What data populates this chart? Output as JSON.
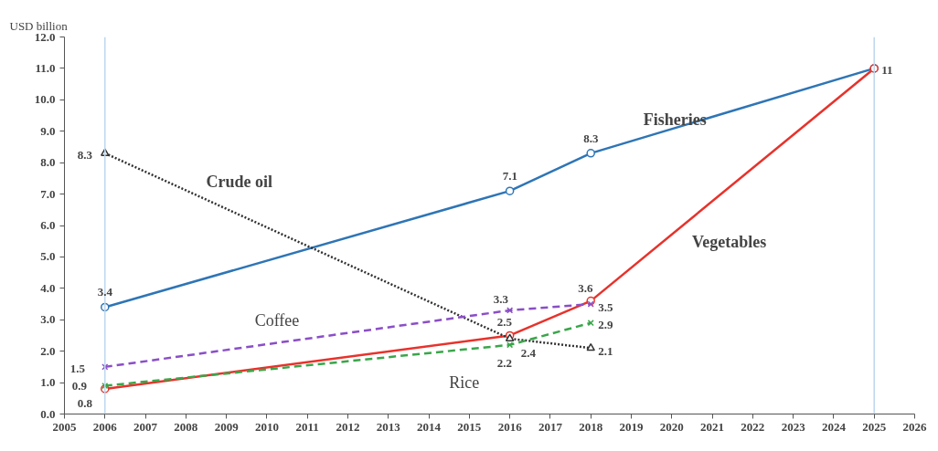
{
  "chart_data": {
    "type": "line",
    "ylabel": "USD billion",
    "xlim": [
      2005,
      2026
    ],
    "xticks": [
      2005,
      2006,
      2007,
      2008,
      2009,
      2010,
      2011,
      2012,
      2013,
      2014,
      2015,
      2016,
      2017,
      2018,
      2019,
      2020,
      2021,
      2022,
      2023,
      2024,
      2025,
      2026
    ],
    "ylim": [
      0,
      12
    ],
    "yticks": [
      {
        "value": 0,
        "label": "0.0"
      },
      {
        "value": 1,
        "label": "1.0"
      },
      {
        "value": 2,
        "label": "2.0"
      },
      {
        "value": 3,
        "label": "3.0"
      },
      {
        "value": 4,
        "label": "4.0"
      },
      {
        "value": 5,
        "label": "5.0"
      },
      {
        "value": 6,
        "label": "6.0"
      },
      {
        "value": 7,
        "label": "7.0"
      },
      {
        "value": 8,
        "label": "8.0"
      },
      {
        "value": 9,
        "label": "9.0"
      },
      {
        "value": 10,
        "label": "10.0"
      },
      {
        "value": 11,
        "label": "11.0"
      },
      {
        "value": 12,
        "label": "12.0"
      }
    ],
    "grid": false,
    "ref_lines": [
      {
        "axis": "x",
        "value": 2006,
        "color": "#bdd7ee"
      },
      {
        "axis": "x",
        "value": 2025,
        "color": "#bdd7ee"
      }
    ],
    "series": [
      {
        "name": "Fisheries",
        "color": "#2e75b6",
        "marker": "circle",
        "line_style": "solid",
        "x": [
          2006,
          2016,
          2018,
          2025
        ],
        "values": [
          3.4,
          7.1,
          8.3,
          11
        ],
        "value_labels": [
          "3.4",
          "7.1",
          "8.3",
          "11"
        ]
      },
      {
        "name": "Vegetables",
        "color": "#e8322b",
        "marker": "circle",
        "line_style": "solid",
        "x": [
          2006,
          2016,
          2018,
          2025
        ],
        "values": [
          0.8,
          2.5,
          3.6,
          11
        ],
        "value_labels": [
          "0.8",
          "2.5",
          "3.6",
          null
        ]
      },
      {
        "name": "Crude oil",
        "color": "#333333",
        "marker": "triangle",
        "line_style": "dotted",
        "x": [
          2006,
          2016,
          2018
        ],
        "values": [
          8.3,
          2.4,
          2.1
        ],
        "value_labels": [
          "8.3",
          "2.4",
          "2.1"
        ]
      },
      {
        "name": "Rice",
        "color": "#3aa64a",
        "marker": "cross",
        "line_style": "dashed",
        "x": [
          2006,
          2016,
          2018
        ],
        "values": [
          0.9,
          2.2,
          2.9
        ],
        "value_labels": [
          "0.9",
          "2.2",
          "2.9"
        ]
      },
      {
        "name": "Coffee",
        "color": "#8a4fc7",
        "marker": "cross",
        "line_style": "dashed",
        "x": [
          2006,
          2016,
          2018
        ],
        "values": [
          1.5,
          3.3,
          3.5
        ],
        "value_labels": [
          "1.5",
          "3.3",
          "3.5"
        ]
      }
    ]
  }
}
